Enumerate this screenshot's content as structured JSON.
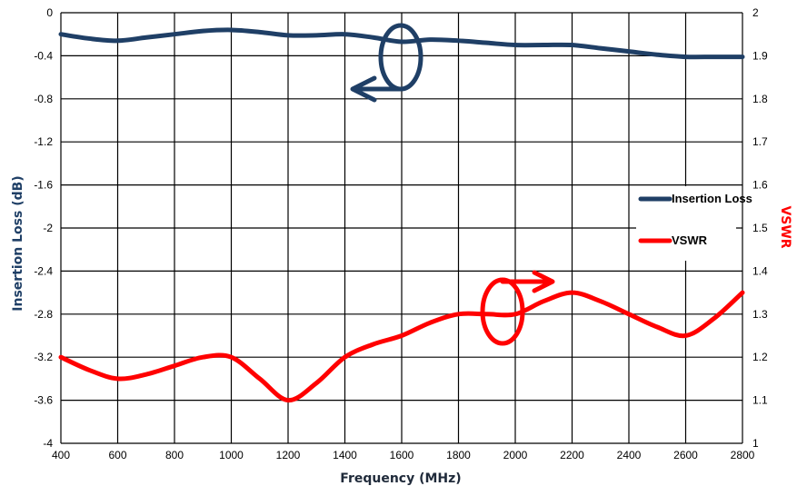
{
  "chart_data": {
    "type": "line",
    "xlabel": "Frequency (MHz)",
    "ylabel_left": "Insertion Loss (dB)",
    "ylabel_right": "VSWR",
    "x_ticks": [
      "400",
      "600",
      "800",
      "1000",
      "1200",
      "1400",
      "1600",
      "1800",
      "2000",
      "2200",
      "2400",
      "2600",
      "2800"
    ],
    "y_left_ticks": [
      "0",
      "-0.4",
      "-0.8",
      "-1.2",
      "-1.6",
      "-2",
      "-2.4",
      "-2.8",
      "-3.2",
      "-3.6",
      "-4"
    ],
    "y_right_ticks": [
      "2",
      "1.9",
      "1.8",
      "1.7",
      "1.6",
      "1.5",
      "1.4",
      "1.3",
      "1.2",
      "1.1",
      "1"
    ],
    "xlim": [
      400,
      2800
    ],
    "ylim_left": [
      -4,
      0
    ],
    "ylim_right": [
      1,
      2
    ],
    "grid": true,
    "legend_position": "right",
    "series": [
      {
        "name": "Insertion Loss",
        "axis": "left",
        "color": "#1f3f66",
        "x": [
          400,
          500,
          600,
          700,
          800,
          900,
          1000,
          1100,
          1200,
          1300,
          1400,
          1500,
          1600,
          1700,
          1800,
          1900,
          2000,
          2100,
          2200,
          2300,
          2400,
          2500,
          2600,
          2700,
          2800
        ],
        "y": [
          -0.2,
          -0.24,
          -0.26,
          -0.23,
          -0.2,
          -0.17,
          -0.16,
          -0.18,
          -0.21,
          -0.21,
          -0.2,
          -0.23,
          -0.27,
          -0.25,
          -0.26,
          -0.28,
          -0.3,
          -0.3,
          -0.3,
          -0.33,
          -0.36,
          -0.39,
          -0.41,
          -0.41,
          -0.41
        ]
      },
      {
        "name": "VSWR",
        "axis": "right",
        "color": "#ff0000",
        "x": [
          400,
          500,
          600,
          700,
          800,
          900,
          1000,
          1100,
          1200,
          1300,
          1400,
          1500,
          1600,
          1700,
          1800,
          1900,
          2000,
          2100,
          2200,
          2300,
          2400,
          2500,
          2600,
          2700,
          2800
        ],
        "y": [
          1.2,
          1.17,
          1.15,
          1.16,
          1.18,
          1.2,
          1.2,
          1.15,
          1.1,
          1.14,
          1.2,
          1.23,
          1.25,
          1.28,
          1.3,
          1.3,
          1.3,
          1.33,
          1.35,
          1.33,
          1.3,
          1.27,
          1.25,
          1.29,
          1.35
        ]
      }
    ]
  },
  "colors": {
    "insertion_loss": "#1f3f66",
    "vswr": "#ff0000",
    "grid": "#000000"
  }
}
